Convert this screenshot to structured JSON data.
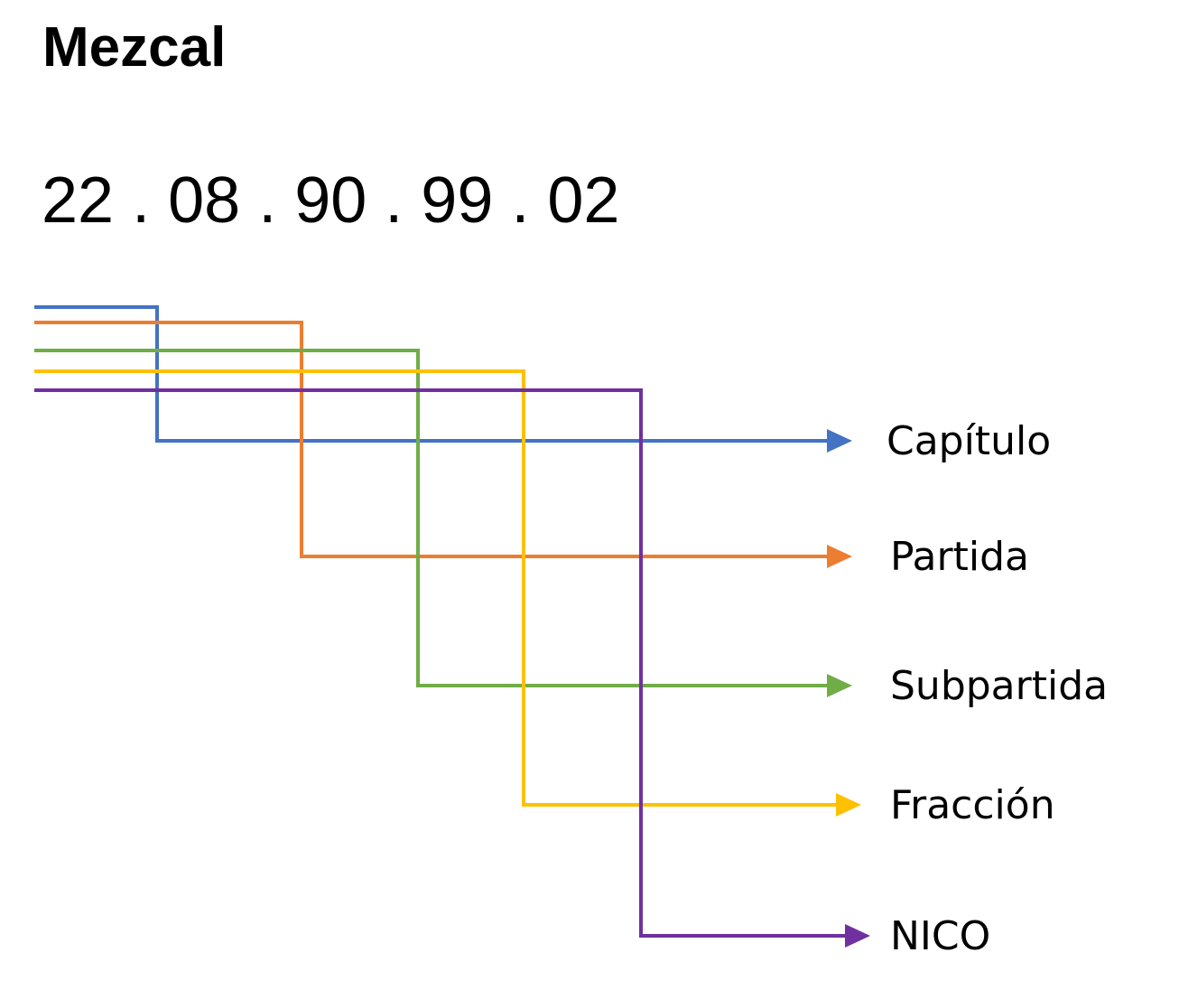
{
  "title": "Mezcal",
  "code": "22 . 08 . 90 . 99 . 02",
  "levels": [
    {
      "label": "Capítulo",
      "color": "#4472C4",
      "icon": "arrow-right-icon"
    },
    {
      "label": "Partida",
      "color": "#ED7D31",
      "icon": "arrow-right-icon"
    },
    {
      "label": "Subpartida",
      "color": "#70AD47",
      "icon": "arrow-right-icon"
    },
    {
      "label": "Fracción",
      "color": "#FFC000",
      "icon": "arrow-right-icon"
    },
    {
      "label": "NICO",
      "color": "#7030A0",
      "icon": "arrow-right-icon"
    }
  ]
}
